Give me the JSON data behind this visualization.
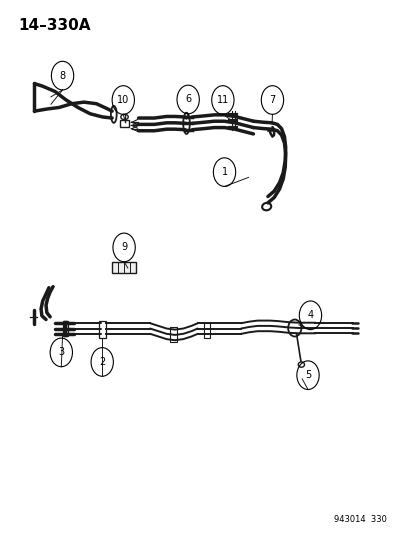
{
  "title": "14–330A",
  "footer": "943014  330",
  "background_color": "#ffffff",
  "line_color": "#1a1a1a",
  "text_color": "#000000",
  "figsize": [
    4.16,
    5.33
  ],
  "dpi": 100
}
